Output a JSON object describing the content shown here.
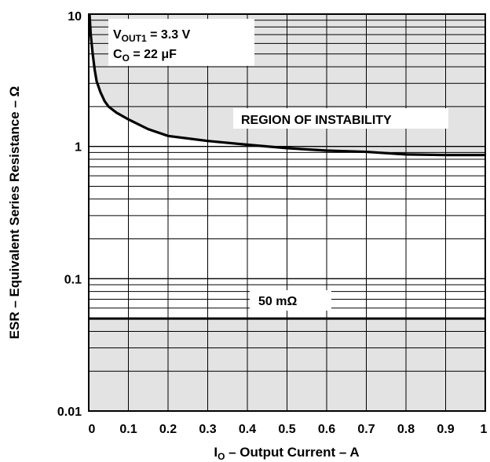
{
  "chart_data": {
    "type": "line",
    "xscale": "linear",
    "yscale": "log",
    "xlim": [
      0,
      1
    ],
    "ylim": [
      0.01,
      10
    ],
    "x_ticks": [
      0,
      0.1,
      0.2,
      0.3,
      0.4,
      0.5,
      0.6,
      0.7,
      0.8,
      0.9,
      1
    ],
    "x_tick_labels": [
      "0",
      "0.1",
      "0.2",
      "0.3",
      "0.4",
      "0.5",
      "0.6",
      "0.7",
      "0.8",
      "0.9",
      "1"
    ],
    "y_ticks": [
      0.01,
      0.1,
      1,
      10
    ],
    "y_tick_labels": [
      "0.01",
      "0.1",
      "1",
      "10"
    ],
    "xlabel": {
      "main": "I",
      "sub": "O",
      "rest": " – Output Current – A"
    },
    "ylabel": "ESR – Equivalent Series Resistance – Ω",
    "grid": true,
    "colors": {
      "shaded": "#e3e3e3",
      "line": "#000000"
    },
    "shaded_regions": [
      "above-curve",
      "below-50mOhm"
    ],
    "series": [
      {
        "x": [
          0.002,
          0.005,
          0.01,
          0.015,
          0.02,
          0.03,
          0.04,
          0.05,
          0.07,
          0.1,
          0.15,
          0.2,
          0.3,
          0.4,
          0.5,
          0.6,
          0.7,
          0.8,
          0.9,
          1.0
        ],
        "y": [
          10,
          7,
          5,
          3.8,
          3.1,
          2.55,
          2.2,
          2.0,
          1.8,
          1.6,
          1.35,
          1.2,
          1.1,
          1.03,
          0.97,
          0.93,
          0.91,
          0.87,
          0.86,
          0.86
        ]
      }
    ],
    "hlines": [
      {
        "y": 0.05,
        "label": "50 mΩ"
      }
    ],
    "annotations": {
      "vout": {
        "main": "V",
        "sub": "OUT1",
        "rest": " = 3.3 V"
      },
      "cout": {
        "main": "C",
        "sub": "O",
        "rest": " = 22 μF"
      },
      "region": "REGION OF INSTABILITY",
      "ref_line": "50 mΩ"
    }
  }
}
